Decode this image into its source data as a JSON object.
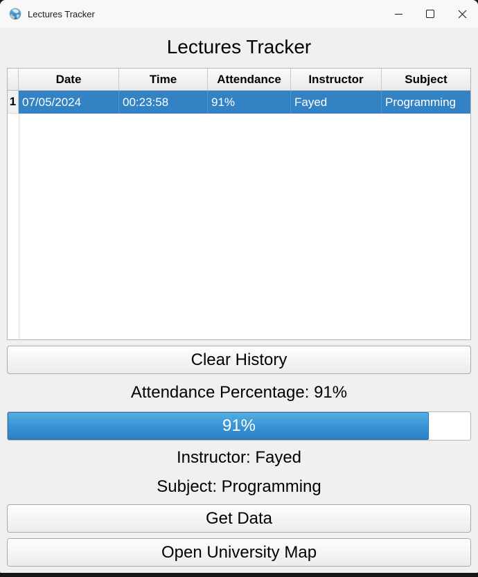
{
  "window": {
    "title": "Lectures Tracker"
  },
  "header": {
    "title": "Lectures Tracker"
  },
  "table": {
    "columns": [
      "Date",
      "Time",
      "Attendance",
      "Instructor",
      "Subject"
    ],
    "rows": [
      {
        "index": "1",
        "date": "07/05/2024",
        "time": "00:23:58",
        "attendance": "91%",
        "instructor": "Fayed",
        "subject": "Programming"
      }
    ]
  },
  "buttons": {
    "clear_history": "Clear History",
    "get_data": "Get Data",
    "open_university_map": "Open University Map"
  },
  "labels": {
    "attendance_percentage": "Attendance Percentage: 91%",
    "instructor": "Instructor: Fayed",
    "subject": "Subject: Programming"
  },
  "progress": {
    "percent": 91,
    "label": "91%"
  },
  "colors": {
    "selection_blue": "#3383c4",
    "progress_blue_top": "#55ade2",
    "progress_blue_bottom": "#2e7fc0",
    "window_bg": "#f0f0f0",
    "titlebar_bg": "#f8f8f8"
  }
}
